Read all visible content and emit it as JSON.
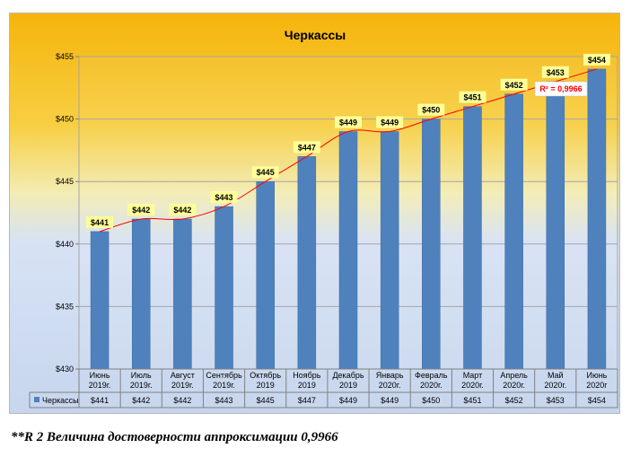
{
  "chart_data": {
    "type": "bar",
    "title": "Черкассы",
    "categories": [
      [
        "Июнь",
        "2019г."
      ],
      [
        "Июль",
        "2019г."
      ],
      [
        "Август",
        "2019г."
      ],
      [
        "Сентябрь",
        "2019г."
      ],
      [
        "Октябрь",
        "2019"
      ],
      [
        "Ноябрь",
        "2019"
      ],
      [
        "Декабрь",
        "2019"
      ],
      [
        "Январь",
        "2020г."
      ],
      [
        "Февраль",
        "2020г."
      ],
      [
        "Март",
        "2020г."
      ],
      [
        "Апрель",
        "2020г."
      ],
      [
        "Май",
        "2020г."
      ],
      [
        "Июнь",
        "2020г"
      ]
    ],
    "series": [
      {
        "name": "Черкассы",
        "values": [
          441,
          442,
          442,
          443,
          445,
          447,
          449,
          449,
          450,
          451,
          452,
          453,
          454
        ],
        "color": "#4f81bd"
      }
    ],
    "data_labels": [
      "$441",
      "$442",
      "$442",
      "$443",
      "$445",
      "$447",
      "$449",
      "$449",
      "$450",
      "$451",
      "$452",
      "$453",
      "$454"
    ],
    "table_values": [
      "$441",
      "$442",
      "$442",
      "$443",
      "$445",
      "$447",
      "$449",
      "$449",
      "$450",
      "$451",
      "$452",
      "$453",
      "$454"
    ],
    "ylim": [
      430,
      455
    ],
    "yticks": [
      430,
      435,
      440,
      445,
      450,
      455
    ],
    "ytick_labels": [
      "$430",
      "$435",
      "$440",
      "$445",
      "$450",
      "$455"
    ],
    "trendline": {
      "type": "polynomial",
      "color": "#ff0000",
      "r2_label": "R² = 0,9966"
    },
    "gridlines": true,
    "legend": "data-table",
    "colors": {
      "bar": "#4f81bd",
      "label_bg": "#ffff99",
      "trend": "#ff0000"
    }
  },
  "footnote": "**R 2 Величина достоверности аппроксимации 0,9966"
}
